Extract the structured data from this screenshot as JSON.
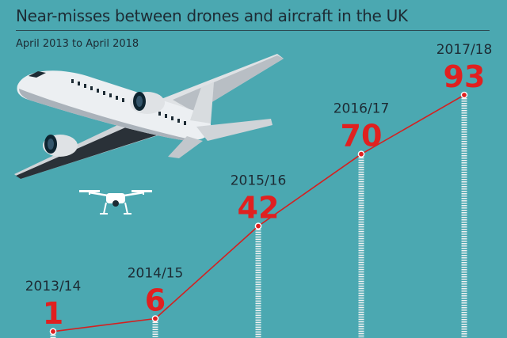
{
  "title": "Near-misses between drones and aircraft in the UK",
  "subtitle": "April 2013 to April 2018",
  "colors": {
    "background": "#4ba8b1",
    "line": "#d42020",
    "value_text": "#e02020",
    "label_text": "#1d2b34",
    "marker": "#e02020",
    "stem": "#f2f2f2"
  },
  "illustrations": [
    "airliner-icon",
    "drone-icon"
  ],
  "chart_data": {
    "type": "line",
    "title": "Near-misses between drones and aircraft in the UK",
    "subtitle": "April 2013 to April 2018",
    "categories": [
      "2013/14",
      "2014/15",
      "2015/16",
      "2016/17",
      "2017/18"
    ],
    "values": [
      1,
      6,
      42,
      70,
      93
    ],
    "ylim": [
      0,
      93
    ],
    "grid": false,
    "legend": "none",
    "data_labels": true
  }
}
